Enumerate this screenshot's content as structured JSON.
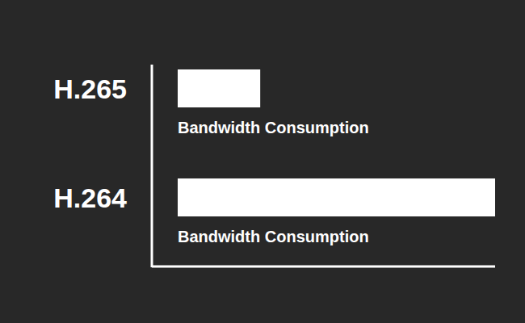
{
  "chart_data": {
    "type": "bar",
    "orientation": "horizontal",
    "categories": [
      "H.265",
      "H.264"
    ],
    "values": [
      26,
      100
    ],
    "color": "#ffffff",
    "xlim": [
      0,
      100
    ],
    "tick_labels": "y",
    "annotations": [
      "Bandwidth Consumption",
      "Bandwidth Consumption"
    ]
  }
}
